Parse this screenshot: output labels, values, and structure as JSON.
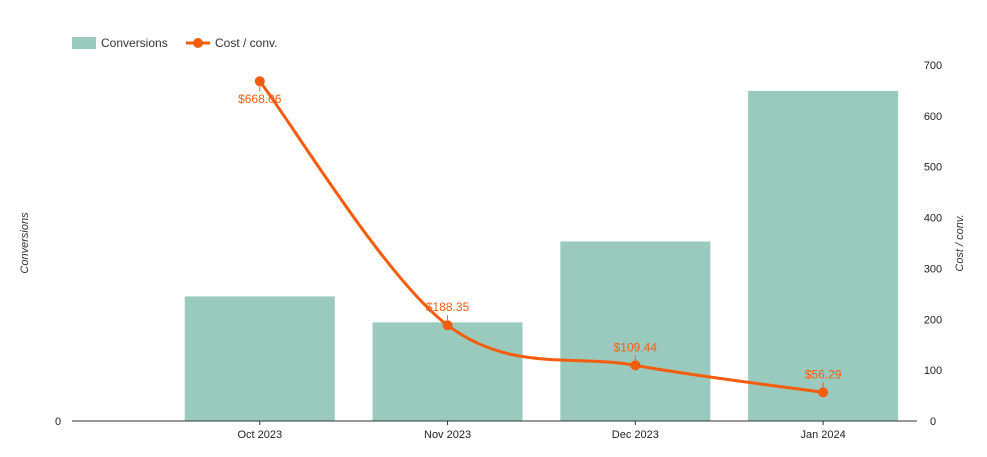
{
  "chart_data": {
    "type": "bar",
    "categories": [
      "Oct 2023",
      "Nov 2023",
      "Dec 2023",
      "Jan 2024"
    ],
    "series": [
      {
        "name": "Conversions",
        "kind": "bar",
        "axis": "left",
        "color": "#99cabd",
        "values": [
          24.5,
          19.4,
          35.3,
          64.9
        ]
      },
      {
        "name": "Cost / conv.",
        "kind": "line",
        "axis": "right",
        "color": "#f45d0d",
        "values": [
          668.06,
          188.35,
          109.44,
          56.29
        ]
      }
    ],
    "data_labels": [
      "$668.06",
      "$188.35",
      "$109.44",
      "$56.29"
    ],
    "left_axis": {
      "label": "Conversions",
      "ticks": [
        "0"
      ],
      "range": [
        0,
        70
      ]
    },
    "right_axis": {
      "label": "Cost / conv.",
      "ticks": [
        "0",
        "100",
        "200",
        "300",
        "400",
        "500",
        "600",
        "700"
      ],
      "range": [
        0,
        700
      ]
    },
    "legend": {
      "placement": "top-left"
    },
    "grid": false
  }
}
